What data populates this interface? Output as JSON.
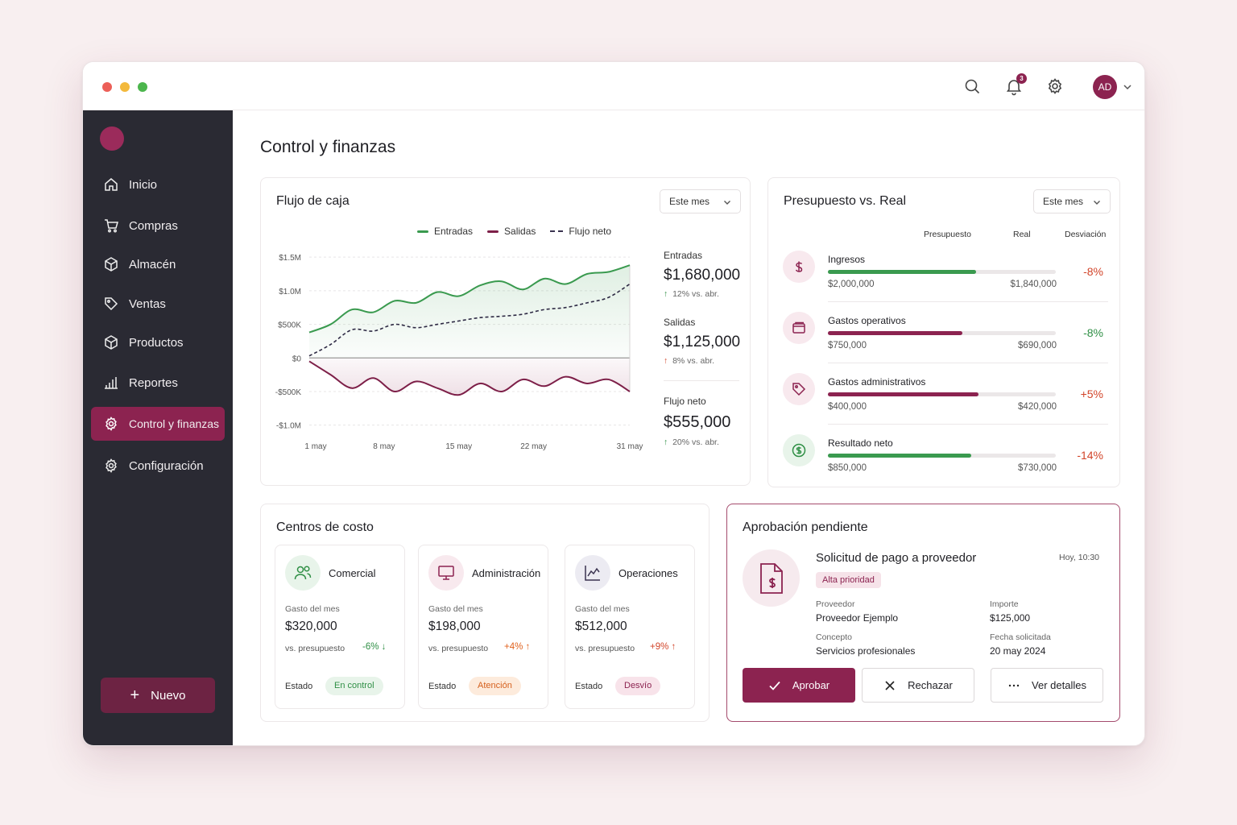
{
  "topbar": {
    "notifications_count": "3",
    "avatar_initials": "AD"
  },
  "sidebar": {
    "items": [
      {
        "label": "Inicio",
        "icon": "home-icon"
      },
      {
        "label": "Compras",
        "icon": "cart-icon"
      },
      {
        "label": "Almacén",
        "icon": "box-icon"
      },
      {
        "label": "Ventas",
        "icon": "tag-icon"
      },
      {
        "label": "Productos",
        "icon": "cube-icon"
      },
      {
        "label": "Reportes",
        "icon": "bar-chart-icon"
      },
      {
        "label": "Control y finanzas",
        "icon": "gear-icon",
        "active": true
      },
      {
        "label": "Configuración",
        "icon": "gear-icon"
      }
    ],
    "new_label": "Nuevo"
  },
  "page": {
    "title": "Control y finanzas"
  },
  "cashflow": {
    "title": "Flujo de caja",
    "period": "Este mes",
    "legend": {
      "in": "Entradas",
      "out": "Salidas",
      "net": "Flujo neto"
    },
    "stats": {
      "in_label": "Entradas",
      "in_value": "$1,680,000",
      "in_delta": "12% vs. abr.",
      "out_label": "Salidas",
      "out_value": "$1,125,000",
      "out_delta": "8% vs. abr.",
      "net_label": "Flujo neto",
      "net_value": "$555,000",
      "net_delta": "20% vs. abr."
    }
  },
  "chart_data": {
    "type": "line",
    "xlabel": "",
    "ylabel": "",
    "y_ticks": [
      "$1.5M",
      "$1.0M",
      "$500K",
      "$0",
      "-$500K",
      "-$1.0M"
    ],
    "ylim": [
      -1.1,
      1.55
    ],
    "x_ticks": [
      "1 may",
      "8 may",
      "15 may",
      "22 may",
      "31 may"
    ],
    "x": [
      1,
      3,
      5,
      7,
      9,
      11,
      13,
      15,
      17,
      19,
      21,
      23,
      25,
      27,
      29,
      31
    ],
    "series": [
      {
        "name": "Entradas",
        "color": "#3a9a4f",
        "values": [
          0.38,
          0.5,
          0.72,
          0.68,
          0.85,
          0.82,
          0.98,
          0.92,
          1.08,
          1.14,
          1.02,
          1.18,
          1.1,
          1.25,
          1.28,
          1.38
        ]
      },
      {
        "name": "Salidas",
        "color": "#7d1f48",
        "values": [
          -0.05,
          -0.25,
          -0.45,
          -0.3,
          -0.5,
          -0.35,
          -0.45,
          -0.55,
          -0.38,
          -0.5,
          -0.32,
          -0.42,
          -0.28,
          -0.38,
          -0.32,
          -0.5
        ]
      },
      {
        "name": "Flujo neto",
        "color": "#2e2a44",
        "values": [
          0.03,
          0.2,
          0.42,
          0.4,
          0.5,
          0.45,
          0.5,
          0.55,
          0.6,
          0.62,
          0.65,
          0.72,
          0.75,
          0.82,
          0.9,
          1.1
        ]
      }
    ]
  },
  "budget": {
    "title": "Presupuesto vs. Real",
    "period": "Este mes",
    "head_budget": "Presupuesto",
    "head_real": "Real",
    "head_dev": "Desviación",
    "rows": [
      {
        "name": "Ingresos",
        "budget": "$2,000,000",
        "real": "$1,840,000",
        "dev": "-8%",
        "fill": 0.65,
        "color": "#3a9a4f",
        "dev_color": "#d2452a",
        "icon": "dollar-icon",
        "icon_bg": "#f8e9ee",
        "icon_color": "#8c2350"
      },
      {
        "name": "Gastos operativos",
        "budget": "$750,000",
        "real": "$690,000",
        "dev": "-8%",
        "fill": 0.59,
        "color": "#8c2350",
        "dev_color": "#2f8f45",
        "icon": "wallet-icon",
        "icon_bg": "#f8e9ee",
        "icon_color": "#8c2350"
      },
      {
        "name": "Gastos administrativos",
        "budget": "$400,000",
        "real": "$420,000",
        "dev": "+5%",
        "fill": 0.66,
        "color": "#8c2350",
        "dev_color": "#d2452a",
        "icon": "tag-icon",
        "icon_bg": "#f8e9ee",
        "icon_color": "#8c2350"
      },
      {
        "name": "Resultado neto",
        "budget": "$850,000",
        "real": "$730,000",
        "dev": "-14%",
        "fill": 0.63,
        "color": "#3a9a4f",
        "dev_color": "#d2452a",
        "icon": "coin-icon",
        "icon_bg": "#e8f4ea",
        "icon_color": "#2f8f45"
      }
    ]
  },
  "cost_centers": {
    "title": "Centros de costo",
    "items": [
      {
        "name": "Comercial",
        "spend_label": "Gasto del mes",
        "spend": "$320,000",
        "vs_label": "vs. presupuesto",
        "pct": "-6%",
        "pct_color": "#2f8f45",
        "arrow": "↓",
        "state_label": "Estado",
        "state": "En control",
        "pill_bg": "#e8f4ea",
        "pill_color": "#2f8f45",
        "icon": "users-icon",
        "icon_bg": "#e8f4ea",
        "icon_color": "#2f8f45"
      },
      {
        "name": "Administración",
        "spend_label": "Gasto del mes",
        "spend": "$198,000",
        "vs_label": "vs. presupuesto",
        "pct": "+4%",
        "pct_color": "#e0621e",
        "arrow": "↑",
        "state_label": "Estado",
        "state": "Atención",
        "pill_bg": "#fdebdc",
        "pill_color": "#d5601d",
        "icon": "monitor-icon",
        "icon_bg": "#f8e9ee",
        "icon_color": "#8c2350"
      },
      {
        "name": "Operaciones",
        "spend_label": "Gasto del mes",
        "spend": "$512,000",
        "vs_label": "vs. presupuesto",
        "pct": "+9%",
        "pct_color": "#d2452a",
        "arrow": "↑",
        "state_label": "Estado",
        "state": "Desvío",
        "pill_bg": "#f8e3ea",
        "pill_color": "#8c2350",
        "icon": "line-chart-icon",
        "icon_bg": "#ecebf2",
        "icon_color": "#3a3350"
      }
    ]
  },
  "approval": {
    "title": "Aprobación pendiente",
    "request_title": "Solicitud de pago a proveedor",
    "time": "Hoy, 10:30",
    "priority": "Alta prioridad",
    "supplier_label": "Proveedor",
    "supplier": "Proveedor Ejemplo",
    "amount_label": "Importe",
    "amount": "$125,000",
    "concept_label": "Concepto",
    "concept": "Servicios profesionales",
    "date_label": "Fecha solicitada",
    "date": "20 may 2024",
    "approve": "Aprobar",
    "reject": "Rechazar",
    "details": "Ver detalles"
  }
}
